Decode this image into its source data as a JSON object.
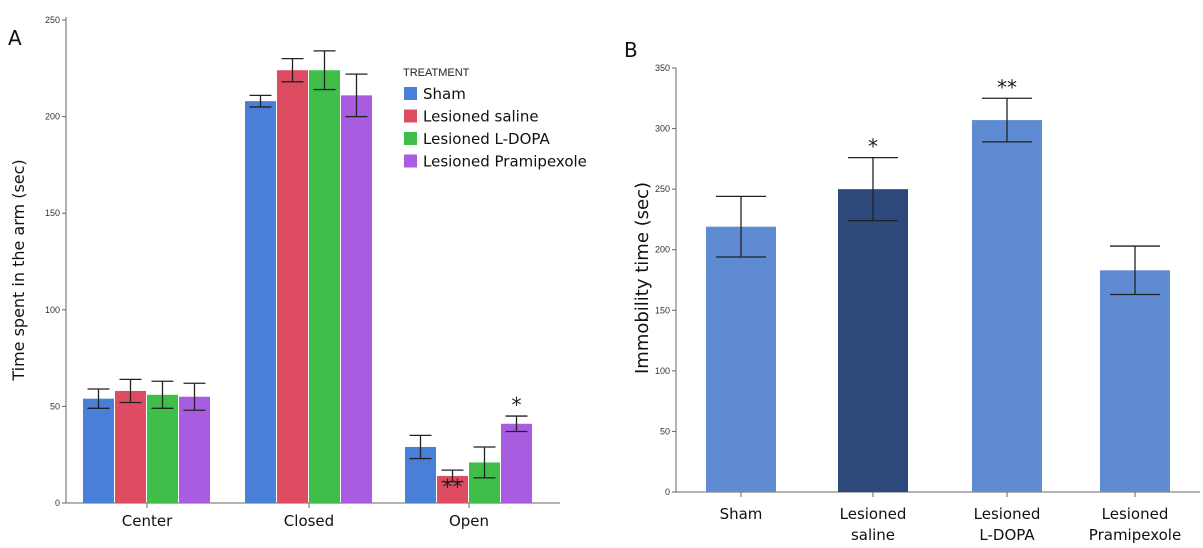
{
  "chart_data": [
    {
      "panel": "A",
      "type": "bar",
      "ylabel": "Time spent in the arm (sec)",
      "ylim": [
        0,
        250
      ],
      "yticks": [
        0,
        50,
        100,
        150,
        200,
        250
      ],
      "categories": [
        "Center",
        "Closed",
        "Open"
      ],
      "legend_title": "TREATMENT",
      "legend_position": "top-right",
      "series": [
        {
          "name": "Sham",
          "color": "#4a7fd8",
          "values": [
            54,
            208,
            29
          ],
          "errors": [
            5,
            3,
            6
          ],
          "stars": [
            "",
            "",
            ""
          ]
        },
        {
          "name": "Lesioned saline",
          "color": "#dd4c60",
          "values": [
            58,
            224,
            14
          ],
          "errors": [
            6,
            6,
            3
          ],
          "stars": [
            "",
            "",
            "**"
          ]
        },
        {
          "name": "Lesioned L-DOPA",
          "color": "#3fbf4a",
          "values": [
            56,
            224,
            21
          ],
          "errors": [
            7,
            10,
            8
          ],
          "stars": [
            "",
            "",
            ""
          ]
        },
        {
          "name": "Lesioned Pramipexole",
          "color": "#a85ce0",
          "values": [
            55,
            211,
            41
          ],
          "errors": [
            7,
            11,
            4
          ],
          "stars": [
            "",
            "",
            "*"
          ]
        }
      ]
    },
    {
      "panel": "B",
      "type": "bar",
      "ylabel": "Immobility time (sec)",
      "ylim": [
        0,
        350
      ],
      "yticks": [
        0,
        50,
        100,
        150,
        200,
        250,
        300,
        350
      ],
      "categories": [
        [
          "Sham"
        ],
        [
          "Lesioned",
          "saline"
        ],
        [
          "Lesioned",
          "L-DOPA"
        ],
        [
          "Lesioned",
          "Pramipexole"
        ]
      ],
      "values": [
        219,
        250,
        307,
        183
      ],
      "errors": [
        25,
        26,
        18,
        20
      ],
      "colors": [
        "#5f8bd2",
        "#2e4a7d",
        "#5f8bd2",
        "#5f8bd2"
      ],
      "stars": [
        "",
        "*",
        "**",
        ""
      ]
    }
  ]
}
